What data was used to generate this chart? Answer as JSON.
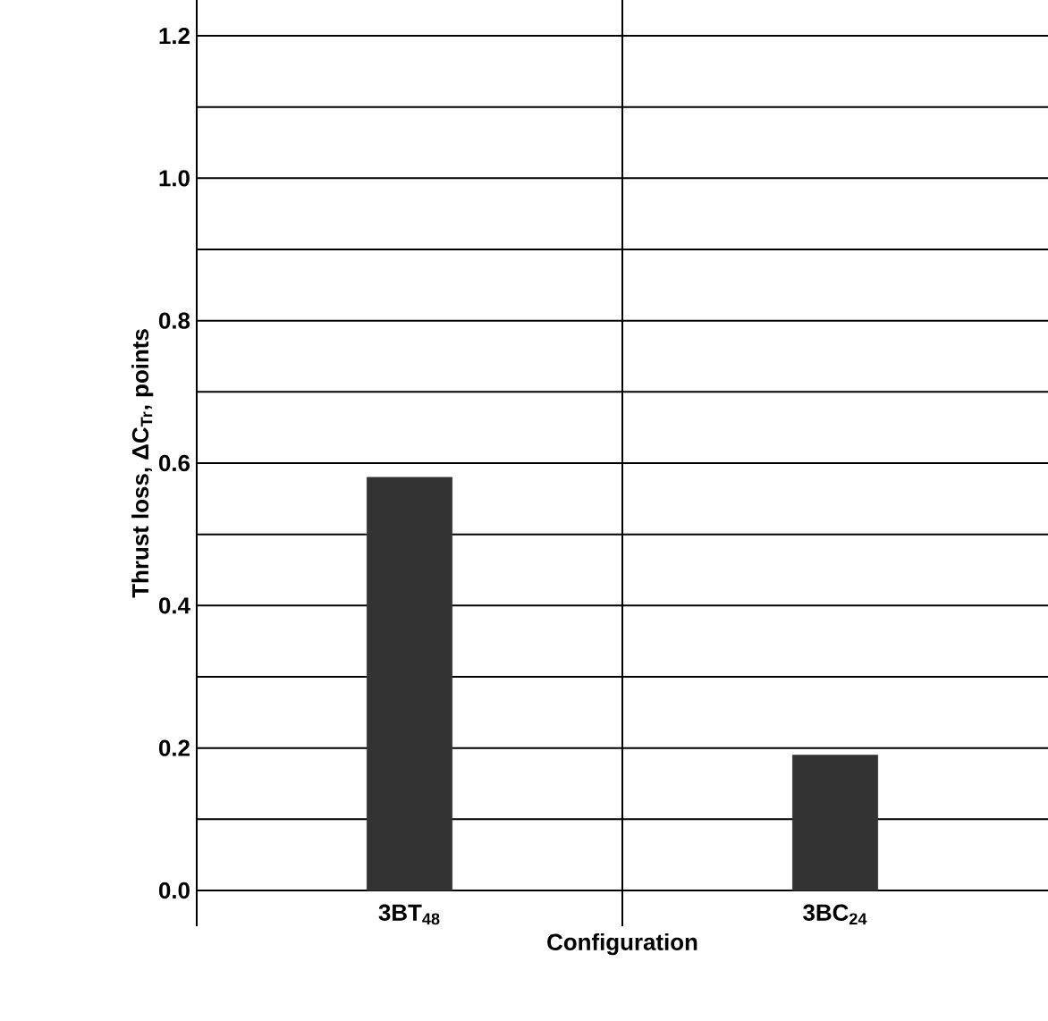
{
  "chart_data": {
    "type": "bar",
    "xlabel": "Configuration",
    "ylabel": "Thrust loss, ΔC$_{Tr}$, points",
    "categories": [
      "3BT$_{48}$",
      "3BC$_{24}$"
    ],
    "values": [
      0.58,
      0.19
    ],
    "color": "#333333",
    "ylim": [
      0,
      1.2
    ],
    "yticks": [
      {
        "value": 0,
        "label": "0.0"
      },
      {
        "value": 0.1,
        "label": null
      },
      0.2,
      {
        "value": 0.3,
        "label": null
      },
      0.4,
      {
        "value": 0.5,
        "label": null
      },
      0.6,
      {
        "value": 0.7,
        "label": null
      },
      0.8,
      {
        "value": 0.9,
        "label": null
      },
      {
        "value": 1.0,
        "label": "1.0"
      },
      {
        "value": 1.1,
        "label": null
      },
      1.2
    ],
    "grid": true
  }
}
